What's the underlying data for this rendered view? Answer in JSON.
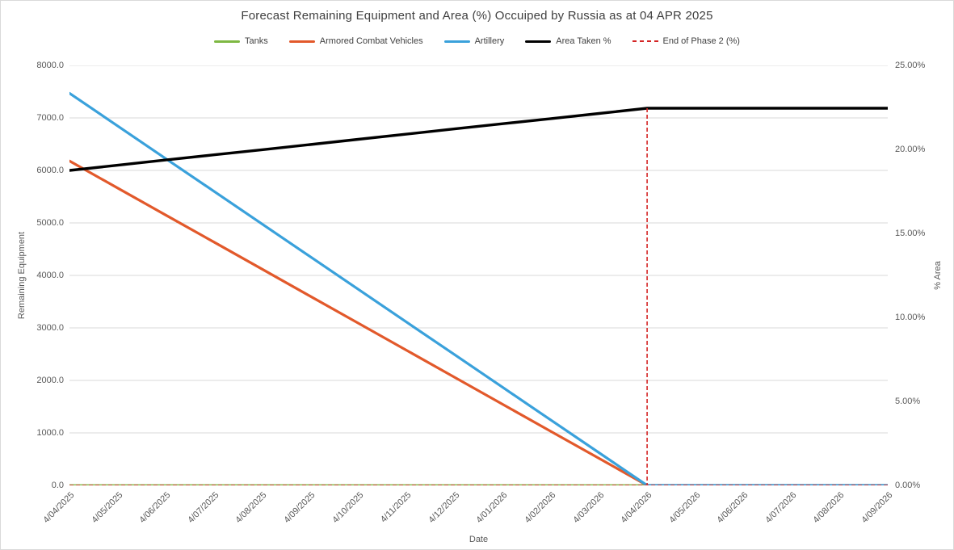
{
  "title": "Forecast Remaining Equipment and Area (%) Occuiped by Russia as at 04 APR 2025",
  "axes": {
    "left": {
      "title": "Remaining Equipment",
      "ticks": [
        "8000.0",
        "7000.0",
        "6000.0",
        "5000.0",
        "4000.0",
        "3000.0",
        "2000.0",
        "1000.0",
        "0.0"
      ]
    },
    "right": {
      "title": "% Area",
      "ticks": [
        "25.00%",
        "20.00%",
        "15.00%",
        "10.00%",
        "5.00%",
        "0.00%"
      ]
    },
    "x": {
      "title": "Date",
      "ticks": [
        "4/04/2025",
        "4/05/2025",
        "4/06/2025",
        "4/07/2025",
        "4/08/2025",
        "4/09/2025",
        "4/10/2025",
        "4/11/2025",
        "4/12/2025",
        "4/01/2026",
        "4/02/2026",
        "4/03/2026",
        "4/04/2026",
        "4/05/2026",
        "4/06/2026",
        "4/07/2026",
        "4/08/2026",
        "4/09/2026"
      ]
    }
  },
  "colors": {
    "grid": "#d9d9d9",
    "axis_text": "#595959",
    "title_text": "#404040"
  },
  "chart_data": {
    "type": "line",
    "title": "Forecast Remaining Equipment and Area (%) Occuiped by Russia as at 04 APR 2025",
    "xlabel": "Date",
    "ylabel_left": "Remaining Equipment",
    "ylabel_right": "% Area",
    "ylim_left": [
      0,
      8000
    ],
    "ylim_right": [
      0,
      25
    ],
    "grid": "horizontal gridlines at every 1000 units of left axis",
    "legend_position": "top",
    "x": [
      "4/04/2025",
      "4/05/2025",
      "4/06/2025",
      "4/07/2025",
      "4/08/2025",
      "4/09/2025",
      "4/10/2025",
      "4/11/2025",
      "4/12/2025",
      "4/01/2026",
      "4/02/2026",
      "4/03/2026",
      "4/04/2026",
      "4/05/2026",
      "4/06/2026",
      "4/07/2026",
      "4/08/2026",
      "4/09/2026"
    ],
    "series": [
      {
        "id": "tanks",
        "name": "Tanks",
        "axis": "left",
        "color": "#7eb843",
        "width": 2.8,
        "values": [
          0,
          0,
          0,
          0,
          0,
          0,
          0,
          0,
          0,
          0,
          0,
          0,
          0,
          0,
          0,
          0,
          0,
          0
        ]
      },
      {
        "id": "armored-combat-vehicles",
        "name": "Armored Combat Vehicles",
        "axis": "left",
        "color": "#e2592b",
        "width": 3.2,
        "values": [
          6180,
          5665,
          5150,
          4635,
          4120,
          3605,
          3090,
          2575,
          2060,
          1545,
          1030,
          515,
          0,
          0,
          0,
          0,
          0,
          0
        ]
      },
      {
        "id": "artillery",
        "name": "Artillery",
        "axis": "left",
        "color": "#3aa1db",
        "width": 3.2,
        "values": [
          7470,
          6848,
          6225,
          5603,
          4980,
          4358,
          3735,
          3113,
          2490,
          1868,
          1245,
          623,
          0,
          0,
          0,
          0,
          0,
          0
        ]
      },
      {
        "id": "area-taken",
        "name": "Area Taken %",
        "axis": "right",
        "color": "#000000",
        "width": 3.4,
        "values": [
          18.75,
          19.06,
          19.37,
          19.68,
          19.98,
          20.29,
          20.6,
          20.91,
          21.22,
          21.53,
          21.83,
          22.14,
          22.45,
          22.45,
          22.45,
          22.45,
          22.45,
          22.45
        ]
      }
    ],
    "end_of_phase2": {
      "id": "end-of-phase2",
      "name": "End of Phase 2 (%)",
      "axis": "right",
      "color": "#d42525",
      "dash": true,
      "x": "4/04/2026",
      "x_index": 12,
      "peak_pct": 22.45,
      "baseline_pct": 0
    }
  }
}
